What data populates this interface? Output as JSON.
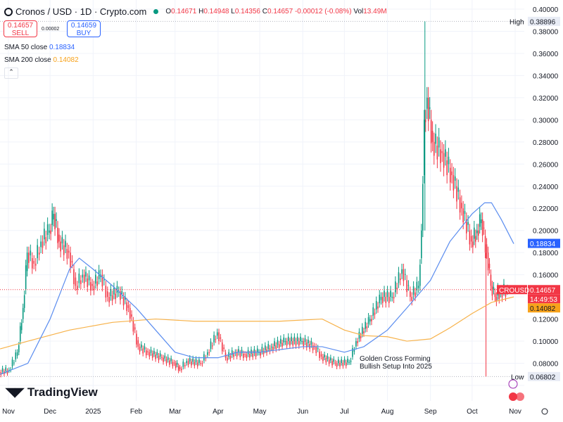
{
  "header": {
    "symbol": "Cronos / USD · 1D · Crypto.com",
    "open_label": "O",
    "open": "0.14671",
    "high_label": "H",
    "high": "0.14948",
    "low_label": "L",
    "low": "0.14356",
    "close_label": "C",
    "close": "0.14657",
    "change": "-0.00012 (-0.08%)",
    "vol_label": "Vol",
    "vol": "13.49M"
  },
  "trade": {
    "sell_price": "0.14657",
    "sell_label": "SELL",
    "spread": "0.00002",
    "buy_price": "0.14659",
    "buy_label": "BUY"
  },
  "indicators": [
    {
      "label": "SMA 50 close",
      "value": "0.18834",
      "color": "#2962ff"
    },
    {
      "label": "SMA 200 close",
      "value": "0.14082",
      "color": "#f7a21b"
    }
  ],
  "collapse_icon": "chevron-up-icon",
  "brand": "TradingView",
  "annotation": [
    "Golden Cross Forming",
    "Bullish Setup Into 2025"
  ],
  "tags": {
    "high_label": "High",
    "high": "0.38896",
    "low_label": "Low",
    "low": "0.06802",
    "symbol": "CROUSD",
    "price": "0.14657",
    "countdown": "14:49:53",
    "sma50": "0.18834",
    "sma200": "0.14082"
  },
  "colors": {
    "up": "#089981",
    "down": "#f23645",
    "sma50": "#5b8def",
    "sma200": "#f7b24a"
  },
  "chart_data": {
    "type": "candlestick",
    "ylim": [
      0.05,
      0.4
    ],
    "xlim": [
      "2024-10-26",
      "2025-11-05"
    ],
    "yticks": [
      "0.40000",
      "0.38000",
      "0.36000",
      "0.34000",
      "0.32000",
      "0.30000",
      "0.28000",
      "0.26000",
      "0.24000",
      "0.22000",
      "0.20000",
      "0.18000",
      "0.16000",
      "0.14000",
      "0.12000",
      "0.10000",
      "0.08000",
      "0.06000"
    ],
    "xticks": [
      {
        "label": "Nov",
        "date": "2024-11-01"
      },
      {
        "label": "Dec",
        "date": "2024-12-01"
      },
      {
        "label": "2025",
        "date": "2025-01-01"
      },
      {
        "label": "Feb",
        "date": "2025-02-01"
      },
      {
        "label": "Mar",
        "date": "2025-03-01"
      },
      {
        "label": "Apr",
        "date": "2025-04-01"
      },
      {
        "label": "May",
        "date": "2025-05-01"
      },
      {
        "label": "Jun",
        "date": "2025-06-01"
      },
      {
        "label": "Jul",
        "date": "2025-07-01"
      },
      {
        "label": "Aug",
        "date": "2025-08-01"
      },
      {
        "label": "Sep",
        "date": "2025-09-01"
      },
      {
        "label": "Oct",
        "date": "2025-10-01"
      },
      {
        "label": "Nov",
        "date": "2025-11-01"
      }
    ],
    "closes": [
      [
        "2024-10-26",
        0.072
      ],
      [
        "2024-11-02",
        0.074
      ],
      [
        "2024-11-08",
        0.09
      ],
      [
        "2024-11-12",
        0.13
      ],
      [
        "2024-11-15",
        0.18
      ],
      [
        "2024-11-20",
        0.17
      ],
      [
        "2024-11-25",
        0.19
      ],
      [
        "2024-12-01",
        0.2
      ],
      [
        "2024-12-04",
        0.215
      ],
      [
        "2024-12-08",
        0.19
      ],
      [
        "2024-12-15",
        0.18
      ],
      [
        "2024-12-20",
        0.15
      ],
      [
        "2024-12-25",
        0.16
      ],
      [
        "2025-01-01",
        0.15
      ],
      [
        "2025-01-07",
        0.16
      ],
      [
        "2025-01-12",
        0.14
      ],
      [
        "2025-01-20",
        0.145
      ],
      [
        "2025-01-27",
        0.13
      ],
      [
        "2025-02-03",
        0.095
      ],
      [
        "2025-02-10",
        0.09
      ],
      [
        "2025-02-20",
        0.085
      ],
      [
        "2025-03-01",
        0.08
      ],
      [
        "2025-03-05",
        0.075
      ],
      [
        "2025-03-10",
        0.082
      ],
      [
        "2025-03-20",
        0.08
      ],
      [
        "2025-03-25",
        0.09
      ],
      [
        "2025-04-01",
        0.108
      ],
      [
        "2025-04-07",
        0.085
      ],
      [
        "2025-04-14",
        0.09
      ],
      [
        "2025-04-21",
        0.088
      ],
      [
        "2025-05-01",
        0.09
      ],
      [
        "2025-05-10",
        0.095
      ],
      [
        "2025-05-20",
        0.1
      ],
      [
        "2025-06-01",
        0.1
      ],
      [
        "2025-06-10",
        0.095
      ],
      [
        "2025-06-15",
        0.086
      ],
      [
        "2025-06-25",
        0.08
      ],
      [
        "2025-07-05",
        0.081
      ],
      [
        "2025-07-10",
        0.1
      ],
      [
        "2025-07-20",
        0.12
      ],
      [
        "2025-07-28",
        0.14
      ],
      [
        "2025-08-05",
        0.14
      ],
      [
        "2025-08-12",
        0.165
      ],
      [
        "2025-08-18",
        0.14
      ],
      [
        "2025-08-24",
        0.15
      ],
      [
        "2025-08-26",
        0.2
      ],
      [
        "2025-08-28",
        0.3
      ],
      [
        "2025-08-30",
        0.32
      ],
      [
        "2025-09-03",
        0.28
      ],
      [
        "2025-09-10",
        0.27
      ],
      [
        "2025-09-17",
        0.25
      ],
      [
        "2025-09-24",
        0.22
      ],
      [
        "2025-10-01",
        0.19
      ],
      [
        "2025-10-05",
        0.2
      ],
      [
        "2025-10-08",
        0.21
      ],
      [
        "2025-10-12",
        0.18
      ],
      [
        "2025-10-15",
        0.15
      ],
      [
        "2025-10-18",
        0.14
      ],
      [
        "2025-10-22",
        0.145
      ],
      [
        "2025-10-27",
        0.1466
      ]
    ],
    "sma50": [
      [
        "2024-10-26",
        0.07
      ],
      [
        "2024-11-15",
        0.08
      ],
      [
        "2024-12-01",
        0.12
      ],
      [
        "2024-12-15",
        0.165
      ],
      [
        "2024-12-22",
        0.175
      ],
      [
        "2025-01-01",
        0.165
      ],
      [
        "2025-01-15",
        0.15
      ],
      [
        "2025-02-01",
        0.13
      ],
      [
        "2025-02-15",
        0.11
      ],
      [
        "2025-03-01",
        0.09
      ],
      [
        "2025-03-15",
        0.085
      ],
      [
        "2025-04-01",
        0.085
      ],
      [
        "2025-04-15",
        0.09
      ],
      [
        "2025-05-01",
        0.09
      ],
      [
        "2025-06-01",
        0.095
      ],
      [
        "2025-06-15",
        0.095
      ],
      [
        "2025-07-01",
        0.09
      ],
      [
        "2025-07-15",
        0.095
      ],
      [
        "2025-08-01",
        0.11
      ],
      [
        "2025-08-15",
        0.13
      ],
      [
        "2025-09-01",
        0.155
      ],
      [
        "2025-09-15",
        0.19
      ],
      [
        "2025-10-01",
        0.215
      ],
      [
        "2025-10-10",
        0.225
      ],
      [
        "2025-10-15",
        0.225
      ],
      [
        "2025-10-22",
        0.21
      ],
      [
        "2025-10-31",
        0.188
      ]
    ],
    "sma200": [
      [
        "2024-10-26",
        0.093
      ],
      [
        "2024-11-15",
        0.1
      ],
      [
        "2024-12-15",
        0.11
      ],
      [
        "2025-01-15",
        0.117
      ],
      [
        "2025-02-15",
        0.12
      ],
      [
        "2025-03-15",
        0.118
      ],
      [
        "2025-04-15",
        0.118
      ],
      [
        "2025-05-15",
        0.118
      ],
      [
        "2025-06-15",
        0.12
      ],
      [
        "2025-07-01",
        0.11
      ],
      [
        "2025-07-15",
        0.105
      ],
      [
        "2025-08-01",
        0.104
      ],
      [
        "2025-08-15",
        0.1
      ],
      [
        "2025-09-01",
        0.102
      ],
      [
        "2025-09-15",
        0.112
      ],
      [
        "2025-10-01",
        0.125
      ],
      [
        "2025-10-15",
        0.135
      ],
      [
        "2025-10-31",
        0.14
      ]
    ],
    "high_value": 0.38896,
    "low_value": 0.06802,
    "last": 0.14657
  }
}
